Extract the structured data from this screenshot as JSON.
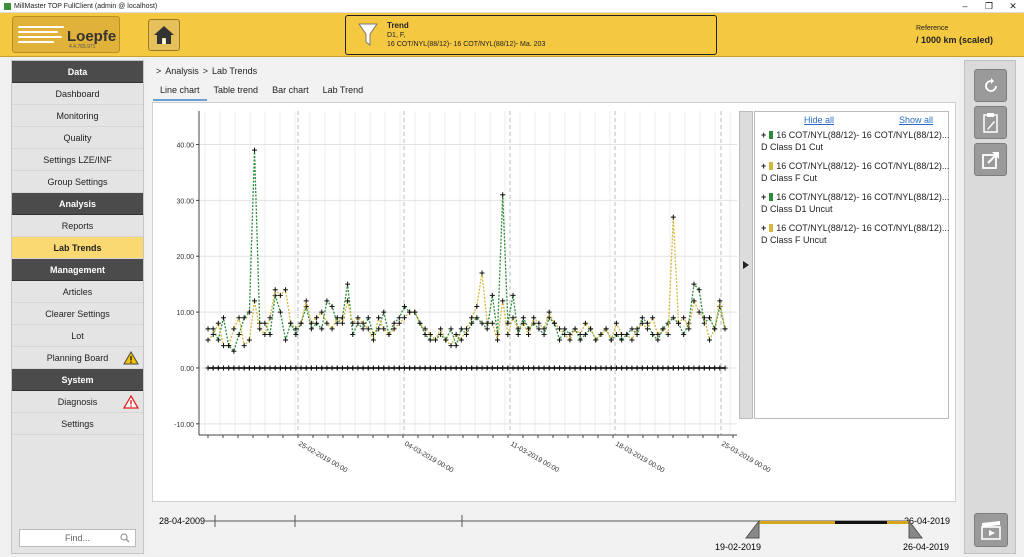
{
  "window": {
    "title": "MillMaster TOP FullClient (admin @ localhost)"
  },
  "header": {
    "logo_text": "Loepfe",
    "logo_version": "4.4.765.971",
    "trend_title": "Trend",
    "trend_line1": "D1, F,",
    "trend_line2": "16 COT/NYL(88/12)- 16 COT/NYL(88/12)- Ma. 203",
    "reference_label": "Reference",
    "reference_value": "/ 1000 km (scaled)"
  },
  "sidebar": {
    "sections": [
      {
        "title": "Data",
        "items": [
          {
            "label": "Dashboard"
          },
          {
            "label": "Monitoring"
          },
          {
            "label": "Quality"
          },
          {
            "label": "Settings LZE/INF"
          },
          {
            "label": "Group Settings"
          }
        ]
      },
      {
        "title": "Analysis",
        "items": [
          {
            "label": "Reports"
          },
          {
            "label": "Lab Trends",
            "active": true
          }
        ]
      },
      {
        "title": "Management",
        "items": [
          {
            "label": "Articles"
          },
          {
            "label": "Clearer Settings"
          },
          {
            "label": "Lot"
          },
          {
            "label": "Planning Board",
            "badge": "warning"
          }
        ]
      },
      {
        "title": "System",
        "items": [
          {
            "label": "Diagnosis",
            "badge": "alert"
          },
          {
            "label": "Settings"
          }
        ]
      }
    ],
    "find_placeholder": "Find..."
  },
  "breadcrumb": {
    "sep": ">",
    "items": [
      "Analysis",
      "Lab Trends"
    ]
  },
  "tabs": [
    "Line chart",
    "Table trend",
    "Bar chart",
    "Lab Trend"
  ],
  "legend": {
    "hide_all": "Hide all",
    "show_all": "Show all",
    "entries": [
      {
        "line1": "16 COT/NYL(88/12)- 16 COT/NYL(88/12)...",
        "line2": "D Class D1 Cut",
        "color": "#2e8b3a"
      },
      {
        "line1": "16 COT/NYL(88/12)- 16 COT/NYL(88/12)...",
        "line2": "D Class F Cut",
        "color": "#d4b83a"
      },
      {
        "line1": "16 COT/NYL(88/12)- 16 COT/NYL(88/12)...",
        "line2": "D Class D1 Uncut",
        "color": "#2e8b3a"
      },
      {
        "line1": "16 COT/NYL(88/12)- 16 COT/NYL(88/12)...",
        "line2": "D Class F Uncut",
        "color": "#d4b83a"
      }
    ]
  },
  "timeline": {
    "start_label": "28-04-2009",
    "end_label_top": "26-04-2019",
    "sel_start_label": "19-02-2019",
    "sel_end_label": "26-04-2019"
  },
  "colors": {
    "accent": "#f5c842",
    "active_item": "#fad872",
    "series_green": "#2e8b3a",
    "series_yellow": "#d4b83a"
  },
  "chart_data": {
    "type": "line",
    "ylim": [
      -12,
      46
    ],
    "yticks": [
      "-10.00",
      "0.00",
      "10.00",
      "20.00",
      "30.00",
      "40.00"
    ],
    "x_tick_labels": [
      "25-02-2019 00:00",
      "04-03-2019 00:00",
      "11-03-2019 00:00",
      "18-03-2019 00:00",
      "25-03-2019 00:00"
    ],
    "series": [
      {
        "values": [
          7,
          7,
          5,
          9,
          4,
          3,
          6,
          9,
          10,
          39,
          8,
          8,
          6,
          13,
          10,
          5,
          8,
          6,
          8,
          11,
          7,
          8,
          7,
          12,
          11,
          8,
          9,
          15,
          6,
          8,
          7,
          9,
          6,
          7,
          10,
          6,
          8,
          9,
          11,
          10,
          10,
          8,
          6,
          5,
          5,
          6,
          5,
          7,
          4,
          7,
          6,
          8,
          9,
          8,
          7,
          13,
          6,
          31,
          8,
          13,
          6,
          9,
          7,
          8,
          7,
          6,
          9,
          8,
          5,
          7,
          6,
          7,
          5,
          6,
          7,
          5,
          6,
          7,
          5,
          6,
          5,
          6,
          7,
          6,
          9,
          8,
          6,
          5,
          7,
          8,
          9,
          8,
          6,
          8,
          15,
          14,
          8,
          9,
          7,
          11,
          7
        ]
      },
      {
        "values": [
          5,
          6,
          8,
          4,
          4,
          7,
          9,
          4,
          5,
          12,
          7,
          6,
          9,
          14,
          13,
          14,
          8,
          7,
          8,
          12,
          8,
          9,
          10,
          8,
          7,
          9,
          8,
          12,
          8,
          9,
          8,
          7,
          5,
          9,
          7,
          6,
          7,
          8,
          9,
          10,
          10,
          8,
          7,
          6,
          5,
          7,
          5,
          4,
          6,
          5,
          7,
          9,
          11,
          17,
          8,
          8,
          5,
          12,
          6,
          9,
          7,
          8,
          6,
          9,
          8,
          7,
          10,
          8,
          7,
          6,
          5,
          7,
          6,
          8,
          7,
          5,
          6,
          7,
          5,
          8,
          6,
          6,
          5,
          7,
          8,
          7,
          9,
          6,
          7,
          6,
          27,
          8,
          9,
          7,
          12,
          10,
          9,
          5,
          7,
          12,
          7
        ]
      },
      {
        "values": [
          0,
          0,
          0,
          0,
          0,
          0,
          0,
          0,
          0,
          0,
          0,
          0,
          0,
          0,
          0,
          0,
          0,
          0,
          0,
          0,
          0,
          0,
          0,
          0,
          0,
          0,
          0,
          0,
          0,
          0,
          0,
          0,
          0,
          0,
          0,
          0,
          0,
          0,
          0,
          0,
          0,
          0,
          0,
          0,
          0,
          0,
          0,
          0,
          0,
          0,
          0,
          0,
          0,
          0,
          0,
          0,
          0,
          0,
          0,
          0,
          0,
          0,
          0,
          0,
          0,
          0,
          0,
          0,
          0,
          0,
          0,
          0,
          0,
          0,
          0,
          0,
          0,
          0,
          0,
          0,
          0,
          0,
          0,
          0,
          0,
          0,
          0,
          0,
          0,
          0,
          0,
          0,
          0,
          0,
          0,
          0,
          0,
          0,
          0,
          0,
          0
        ]
      },
      {
        "values": [
          0,
          0,
          0,
          0,
          0,
          0,
          0,
          0,
          0,
          0,
          0,
          0,
          0,
          0,
          0,
          0,
          0,
          0,
          0,
          0,
          0,
          0,
          0,
          0,
          0,
          0,
          0,
          0,
          0,
          0,
          0,
          0,
          0,
          0,
          0,
          0,
          0,
          0,
          0,
          0,
          0,
          0,
          0,
          0,
          0,
          0,
          0,
          0,
          0,
          0,
          0,
          0,
          0,
          0,
          0,
          0,
          0,
          0,
          0,
          0,
          0,
          0,
          0,
          0,
          0,
          0,
          0,
          0,
          0,
          0,
          0,
          0,
          0,
          0,
          0,
          0,
          0,
          0,
          0,
          0,
          0,
          0,
          0,
          0,
          0,
          0,
          0,
          0,
          0,
          0,
          0,
          0,
          0,
          0,
          0,
          0,
          0,
          0,
          0,
          0,
          0
        ]
      }
    ]
  }
}
